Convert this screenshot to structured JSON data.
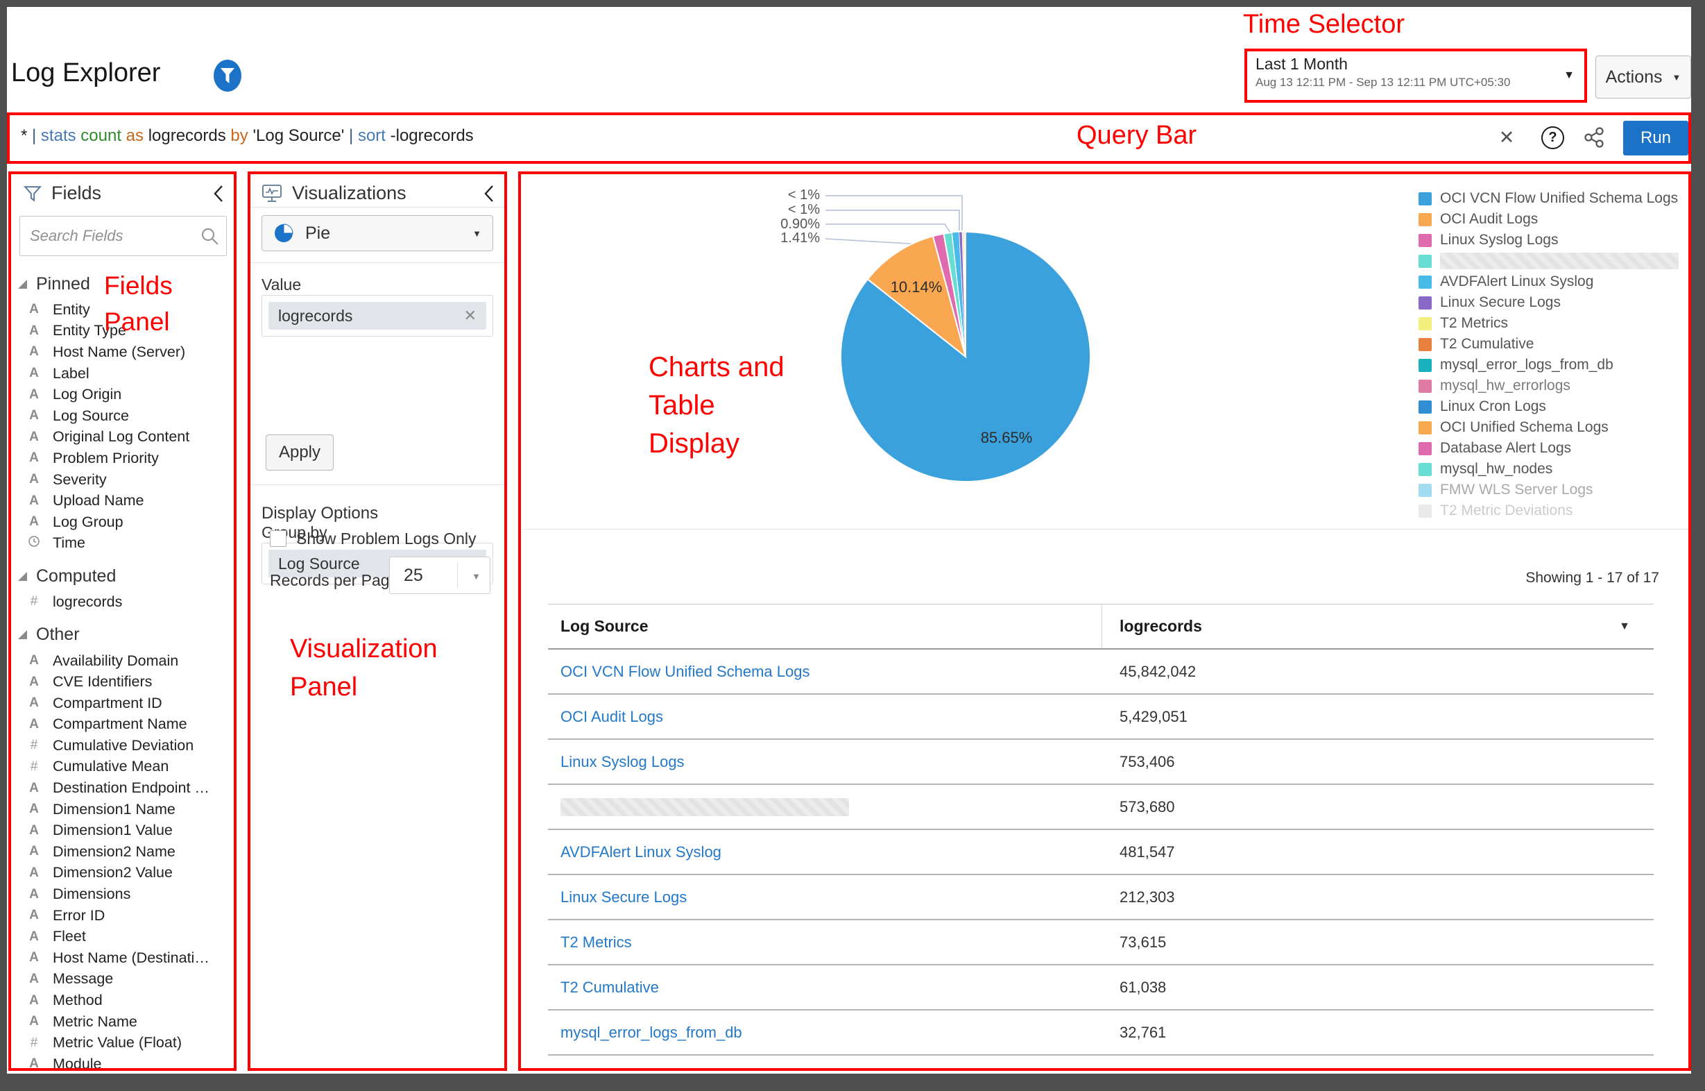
{
  "annotations": {
    "time_selector": "Time Selector",
    "query_bar": "Query Bar",
    "fields_panel": [
      "Fields",
      "Panel"
    ],
    "viz_panel": [
      "Visualization",
      "Panel"
    ],
    "charts": [
      "Charts and",
      "Table",
      "Display"
    ],
    "color": "#fe0000"
  },
  "header": {
    "title": "Log Explorer",
    "time_selector": {
      "label": "Last 1 Month",
      "range": "Aug 13 12:11 PM - Sep 13 12:11 PM UTC+05:30"
    },
    "actions_label": "Actions"
  },
  "query_bar": {
    "tokens": [
      {
        "t": "* ",
        "c": "#222222"
      },
      {
        "t": "| ",
        "c": "#3f5e7e"
      },
      {
        "t": "stats ",
        "c": "#4878b8"
      },
      {
        "t": "count ",
        "c": "#2e8b2e"
      },
      {
        "t": "as ",
        "c": "#c8681f"
      },
      {
        "t": "logrecords ",
        "c": "#222222"
      },
      {
        "t": "by ",
        "c": "#c8681f"
      },
      {
        "t": "'Log Source' ",
        "c": "#222222"
      },
      {
        "t": "| ",
        "c": "#3f5e7e"
      },
      {
        "t": "sort ",
        "c": "#4878b8"
      },
      {
        "t": "-logrecords",
        "c": "#222222"
      }
    ],
    "close_glyph": "✕",
    "help_glyph": "?",
    "run_label": "Run"
  },
  "fields_panel": {
    "title": "Fields",
    "search_placeholder": "Search Fields",
    "sections": [
      {
        "name": "Pinned",
        "items": [
          {
            "t": "A",
            "label": "Entity"
          },
          {
            "t": "A",
            "label": "Entity Type"
          },
          {
            "t": "A",
            "label": "Host Name (Server)"
          },
          {
            "t": "A",
            "label": "Label"
          },
          {
            "t": "A",
            "label": "Log Origin"
          },
          {
            "t": "A",
            "label": "Log Source"
          },
          {
            "t": "A",
            "label": "Original Log Content"
          },
          {
            "t": "A",
            "label": "Problem Priority"
          },
          {
            "t": "A",
            "label": "Severity"
          },
          {
            "t": "A",
            "label": "Upload Name"
          },
          {
            "t": "A",
            "label": "Log Group"
          },
          {
            "t": "clock",
            "label": "Time"
          }
        ]
      },
      {
        "name": "Computed",
        "items": [
          {
            "t": "#",
            "label": "logrecords"
          }
        ]
      },
      {
        "name": "Other",
        "items": [
          {
            "t": "A",
            "label": "Availability Domain"
          },
          {
            "t": "A",
            "label": "CVE Identifiers"
          },
          {
            "t": "A",
            "label": "Compartment ID"
          },
          {
            "t": "A",
            "label": "Compartment Name"
          },
          {
            "t": "#",
            "label": "Cumulative Deviation"
          },
          {
            "t": "#",
            "label": "Cumulative Mean"
          },
          {
            "t": "A",
            "label": "Destination Endpoint …"
          },
          {
            "t": "A",
            "label": "Dimension1 Name"
          },
          {
            "t": "A",
            "label": "Dimension1 Value"
          },
          {
            "t": "A",
            "label": "Dimension2 Name"
          },
          {
            "t": "A",
            "label": "Dimension2 Value"
          },
          {
            "t": "A",
            "label": "Dimensions"
          },
          {
            "t": "A",
            "label": "Error ID"
          },
          {
            "t": "A",
            "label": "Fleet"
          },
          {
            "t": "A",
            "label": "Host Name (Destinati…"
          },
          {
            "t": "A",
            "label": "Message"
          },
          {
            "t": "A",
            "label": "Method"
          },
          {
            "t": "A",
            "label": "Metric Name"
          },
          {
            "t": "#",
            "label": "Metric Value (Float)"
          },
          {
            "t": "A",
            "label": "Module"
          }
        ]
      }
    ]
  },
  "viz_panel": {
    "title": "Visualizations",
    "chart_type": "Pie",
    "value_label": "Value",
    "value_chip": "logrecords",
    "group_by_label": "Group by",
    "group_chip": "Log Source",
    "apply_label": "Apply",
    "display_options_label": "Display Options",
    "checkbox_label": "Show Problem Logs Only",
    "checkbox_checked": false,
    "records_label": "Records per Page",
    "records_value": "25"
  },
  "chart_data": {
    "type": "pie",
    "value_field": "logrecords",
    "group_by": "Log Source",
    "legend_position": "right",
    "callout_labels": [
      "< 1%",
      "< 1%",
      "0.90%",
      "1.41%"
    ],
    "slices": [
      {
        "label": "OCI VCN Flow Unified Schema Logs",
        "value": 45842042,
        "pct": 85.65,
        "color": "#3ba1dc",
        "display_label": "85.65%"
      },
      {
        "label": "OCI Audit Logs",
        "value": 5429051,
        "pct": 10.14,
        "color": "#f9a851",
        "display_label": "10.14%"
      },
      {
        "label": "Linux Syslog Logs",
        "value": 753406,
        "pct": 1.41,
        "color": "#e06aae",
        "display_label": "1.41%"
      },
      {
        "label": "",
        "value": 573680,
        "pct": 1.07,
        "color": "#67ddd4",
        "display_label": ""
      },
      {
        "label": "AVDFAlert Linux Syslog",
        "value": 481547,
        "pct": 0.9,
        "color": "#48bbe8",
        "display_label": "0.90%"
      },
      {
        "label": "Linux Secure Logs",
        "value": 212303,
        "pct": 0.4,
        "color": "#8a68c8",
        "display_label": "< 1%"
      },
      {
        "label": "T2 Metrics",
        "value": 73615,
        "pct": 0.14,
        "color": "#f3ef7e",
        "display_label": "< 1%"
      },
      {
        "label": "T2 Cumulative",
        "value": 61038,
        "pct": 0.11,
        "color": "#e88040",
        "display_label": ""
      },
      {
        "label": "mysql_error_logs_from_db",
        "value": 32761,
        "pct": 0.06,
        "color": "#18b1bd",
        "display_label": ""
      },
      {
        "label": "others",
        "value": null,
        "pct": 0.12,
        "color": "#c8cdd4",
        "display_label": ""
      }
    ]
  },
  "legend": {
    "entries": [
      {
        "label": "OCI VCN Flow Unified Schema Logs",
        "color": "#3ba1dc",
        "redacted": false,
        "opacity": 1
      },
      {
        "label": "OCI Audit Logs",
        "color": "#f9a851",
        "redacted": false,
        "opacity": 1
      },
      {
        "label": "Linux Syslog Logs",
        "color": "#e06aae",
        "redacted": false,
        "opacity": 1
      },
      {
        "label": "",
        "color": "#67ddd4",
        "redacted": true,
        "opacity": 1
      },
      {
        "label": "AVDFAlert Linux Syslog",
        "color": "#48bbe8",
        "redacted": false,
        "opacity": 1
      },
      {
        "label": "Linux Secure Logs",
        "color": "#8a68c8",
        "redacted": false,
        "opacity": 1
      },
      {
        "label": "T2 Metrics",
        "color": "#f3ef7e",
        "redacted": false,
        "opacity": 1
      },
      {
        "label": "T2 Cumulative",
        "color": "#e88040",
        "redacted": false,
        "opacity": 1
      },
      {
        "label": "mysql_error_logs_from_db",
        "color": "#18b1bd",
        "redacted": false,
        "opacity": 1
      },
      {
        "label": "mysql_hw_errorlogs",
        "color": "#d8578c",
        "redacted": false,
        "opacity": 0.78
      },
      {
        "label": "Linux Cron Logs",
        "color": "#2f8fd2",
        "redacted": false,
        "opacity": 1
      },
      {
        "label": "OCI Unified Schema Logs",
        "color": "#f9a851",
        "redacted": false,
        "opacity": 1
      },
      {
        "label": "Database Alert Logs",
        "color": "#e06aae",
        "redacted": false,
        "opacity": 1
      },
      {
        "label": "mysql_hw_nodes",
        "color": "#67ddd4",
        "redacted": false,
        "opacity": 1
      },
      {
        "label": "FMW WLS Server Logs",
        "color": "#48bbe8",
        "redacted": false,
        "opacity": 0.5
      },
      {
        "label": "T2 Metric Deviations",
        "color": "#b8b8b8",
        "redacted": false,
        "opacity": 0.3
      }
    ]
  },
  "table": {
    "showing": "Showing 1 - 17 of 17",
    "columns": [
      "Log Source",
      "logrecords"
    ],
    "sort": "desc",
    "rows": [
      {
        "source": "OCI VCN Flow Unified Schema Logs",
        "value": "45,842,042",
        "redacted": false
      },
      {
        "source": "OCI Audit Logs",
        "value": "5,429,051",
        "redacted": false
      },
      {
        "source": "Linux Syslog Logs",
        "value": "753,406",
        "redacted": false
      },
      {
        "source": "",
        "value": "573,680",
        "redacted": true
      },
      {
        "source": "AVDFAlert Linux Syslog",
        "value": "481,547",
        "redacted": false
      },
      {
        "source": "Linux Secure Logs",
        "value": "212,303",
        "redacted": false
      },
      {
        "source": "T2 Metrics",
        "value": "73,615",
        "redacted": false
      },
      {
        "source": "T2 Cumulative",
        "value": "61,038",
        "redacted": false
      },
      {
        "source": "mysql_error_logs_from_db",
        "value": "32,761",
        "redacted": false
      }
    ]
  }
}
